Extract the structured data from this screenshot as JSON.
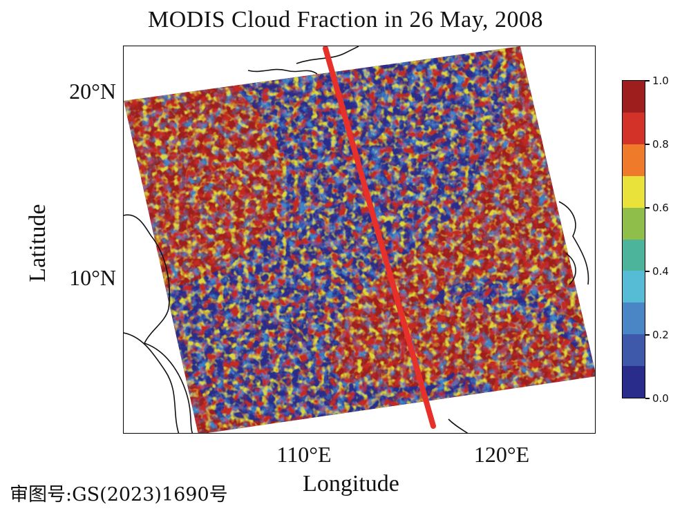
{
  "title": "MODIS Cloud Fraction in 26 May, 2008",
  "axes": {
    "xlabel": "Longitude",
    "ylabel": "Latitude",
    "xticks": [
      "110°E",
      "120°E"
    ],
    "yticks": [
      "20°N",
      "10°N"
    ]
  },
  "colorbar": {
    "ticks": [
      "1.0",
      "0.8",
      "0.6",
      "0.4",
      "0.2",
      "0.0"
    ],
    "colors": [
      "#9e1e1e",
      "#d23228",
      "#ef7a2a",
      "#e8e23a",
      "#8fbf4a",
      "#4cb49a",
      "#56bcd6",
      "#4a86c6",
      "#3e58aa",
      "#2a2c8c"
    ]
  },
  "map": {
    "swath_color": "#9e1e1e",
    "clear_color": "#2a2c8c",
    "track_color": "#e8302a",
    "coastline_color": "#111111"
  },
  "footer": "审图号:GS(2023)1690号"
}
